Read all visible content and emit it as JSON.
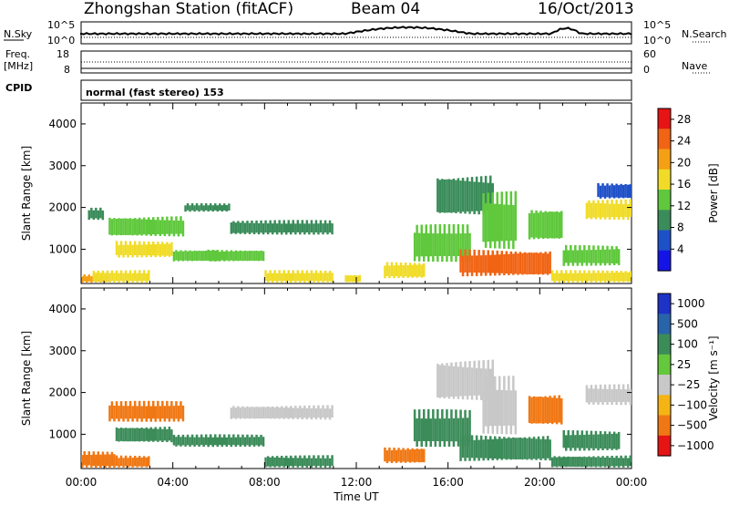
{
  "header": {
    "station_title": "Zhongshan Station (fitACF)",
    "beam_label": "Beam 04",
    "date_label": "16/Oct/2013"
  },
  "strips": {
    "noise": {
      "left_label": "N.Sky",
      "right_label": "N.Search",
      "left_ticks": [
        "10^5",
        "10^0"
      ],
      "right_ticks": [
        "10^5",
        "10^0"
      ]
    },
    "freq": {
      "left_label_top": "Freq.",
      "left_label_bottom": "[MHz]",
      "right_label": "Nave",
      "left_ticks": [
        "18",
        "8"
      ],
      "right_ticks": [
        "60",
        "0"
      ]
    },
    "cpid": {
      "left_label": "CPID",
      "mode_text": "normal (fast stereo) 153"
    }
  },
  "colors": {
    "power_scale": [
      "#1414e6",
      "#1e50c8",
      "#3a8c5a",
      "#5fc83c",
      "#f0dc28",
      "#f5a014",
      "#f06414",
      "#e61414"
    ],
    "velocity_scale": [
      "#1e32c8",
      "#2864aa",
      "#3c8c5a",
      "#64c83c",
      "#c8c8c8",
      "#f5b414",
      "#f07814",
      "#e61414"
    ]
  },
  "chart_data": [
    {
      "type": "heatmap",
      "panel": "power",
      "ylabel": "Slant Range [km]",
      "yticks": [
        "1000",
        "2000",
        "3000",
        "4000"
      ],
      "ylim": [
        180,
        4500
      ],
      "xlim_hours": [
        0,
        24
      ],
      "xticks": [
        "00:00",
        "04:00",
        "08:00",
        "12:00",
        "16:00",
        "20:00",
        "00:00"
      ],
      "colorbar_label": "Power [dB]",
      "colorbar_ticks": [
        "4",
        "8",
        "12",
        "16",
        "20",
        "24",
        "28"
      ],
      "colorbar_range": [
        0,
        30
      ],
      "regions": [
        {
          "t0": 0.0,
          "t1": 1.2,
          "r0": 200,
          "r1": 400,
          "value": 20
        },
        {
          "t0": 0.3,
          "t1": 1.0,
          "r0": 1700,
          "r1": 2000,
          "value": 10
        },
        {
          "t0": 1.2,
          "t1": 4.5,
          "r0": 1300,
          "r1": 1800,
          "value": 14
        },
        {
          "t0": 1.5,
          "t1": 4.0,
          "r0": 800,
          "r1": 1200,
          "value": 16
        },
        {
          "t0": 0.5,
          "t1": 3.0,
          "r0": 200,
          "r1": 500,
          "value": 18
        },
        {
          "t0": 4.0,
          "t1": 6.0,
          "r0": 700,
          "r1": 1000,
          "value": 12
        },
        {
          "t0": 4.5,
          "t1": 6.5,
          "r0": 1900,
          "r1": 2100,
          "value": 8
        },
        {
          "t0": 6.5,
          "t1": 11.0,
          "r0": 1350,
          "r1": 1700,
          "value": 8
        },
        {
          "t0": 5.5,
          "t1": 8.0,
          "r0": 700,
          "r1": 1000,
          "value": 14
        },
        {
          "t0": 8.0,
          "t1": 11.0,
          "r0": 200,
          "r1": 500,
          "value": 16
        },
        {
          "t0": 11.5,
          "t1": 12.2,
          "r0": 200,
          "r1": 400,
          "value": 18
        },
        {
          "t0": 13.2,
          "t1": 15.0,
          "r0": 300,
          "r1": 700,
          "value": 18
        },
        {
          "t0": 14.5,
          "t1": 17.0,
          "r0": 700,
          "r1": 1600,
          "value": 14
        },
        {
          "t0": 15.5,
          "t1": 18.0,
          "r0": 1800,
          "r1": 2800,
          "value": 10
        },
        {
          "t0": 16.5,
          "t1": 20.5,
          "r0": 350,
          "r1": 1000,
          "value": 26
        },
        {
          "t0": 17.5,
          "t1": 19.0,
          "r0": 1000,
          "r1": 2400,
          "value": 14
        },
        {
          "t0": 19.5,
          "t1": 21.0,
          "r0": 1200,
          "r1": 2000,
          "value": 12
        },
        {
          "t0": 21.0,
          "t1": 23.5,
          "r0": 600,
          "r1": 1100,
          "value": 12
        },
        {
          "t0": 22.0,
          "t1": 24.0,
          "r0": 1700,
          "r1": 2200,
          "value": 16
        },
        {
          "t0": 22.5,
          "t1": 24.0,
          "r0": 2200,
          "r1": 2600,
          "value": 6
        },
        {
          "t0": 20.5,
          "t1": 24.0,
          "r0": 200,
          "r1": 500,
          "value": 16
        }
      ]
    },
    {
      "type": "heatmap",
      "panel": "velocity",
      "ylabel": "Slant Range [km]",
      "yticks": [
        "1000",
        "2000",
        "3000",
        "4000"
      ],
      "ylim": [
        180,
        4500
      ],
      "xlim_hours": [
        0,
        24
      ],
      "xticks": [
        "00:00",
        "04:00",
        "08:00",
        "12:00",
        "16:00",
        "20:00",
        "00:00"
      ],
      "xlabel": "Time UT",
      "colorbar_label": "Velocity [m s⁻¹]",
      "colorbar_ticks": [
        "1000",
        "500",
        "100",
        "25",
        "−25",
        "−100",
        "−500",
        "−1000"
      ],
      "regions": [
        {
          "t0": 0.0,
          "t1": 1.5,
          "r0": 200,
          "r1": 600,
          "value": -300
        },
        {
          "t0": 1.2,
          "t1": 4.5,
          "r0": 1300,
          "r1": 1800,
          "value": -300
        },
        {
          "t0": 1.5,
          "t1": 4.0,
          "r0": 800,
          "r1": 1200,
          "value": 200
        },
        {
          "t0": 0.5,
          "t1": 3.0,
          "r0": 200,
          "r1": 500,
          "value": -150
        },
        {
          "t0": 4.0,
          "t1": 6.0,
          "r0": 700,
          "r1": 1000,
          "value": 200
        },
        {
          "t0": 6.5,
          "t1": 11.0,
          "r0": 1350,
          "r1": 1700,
          "value": 0
        },
        {
          "t0": 5.5,
          "t1": 8.0,
          "r0": 700,
          "r1": 1000,
          "value": 300
        },
        {
          "t0": 8.0,
          "t1": 11.0,
          "r0": 200,
          "r1": 500,
          "value": 200
        },
        {
          "t0": 13.2,
          "t1": 15.0,
          "r0": 300,
          "r1": 700,
          "value": -300
        },
        {
          "t0": 14.5,
          "t1": 17.0,
          "r0": 700,
          "r1": 1600,
          "value": 200
        },
        {
          "t0": 15.5,
          "t1": 18.0,
          "r0": 1800,
          "r1": 2800,
          "value": 0
        },
        {
          "t0": 16.5,
          "t1": 20.5,
          "r0": 350,
          "r1": 1000,
          "value": 200
        },
        {
          "t0": 17.5,
          "t1": 19.0,
          "r0": 1000,
          "r1": 2400,
          "value": 0
        },
        {
          "t0": 19.5,
          "t1": 21.0,
          "r0": 1200,
          "r1": 2000,
          "value": -300
        },
        {
          "t0": 21.0,
          "t1": 23.5,
          "r0": 600,
          "r1": 1100,
          "value": 200
        },
        {
          "t0": 22.0,
          "t1": 24.0,
          "r0": 1700,
          "r1": 2200,
          "value": 0
        },
        {
          "t0": 20.5,
          "t1": 24.0,
          "r0": 200,
          "r1": 500,
          "value": 300
        }
      ]
    }
  ]
}
